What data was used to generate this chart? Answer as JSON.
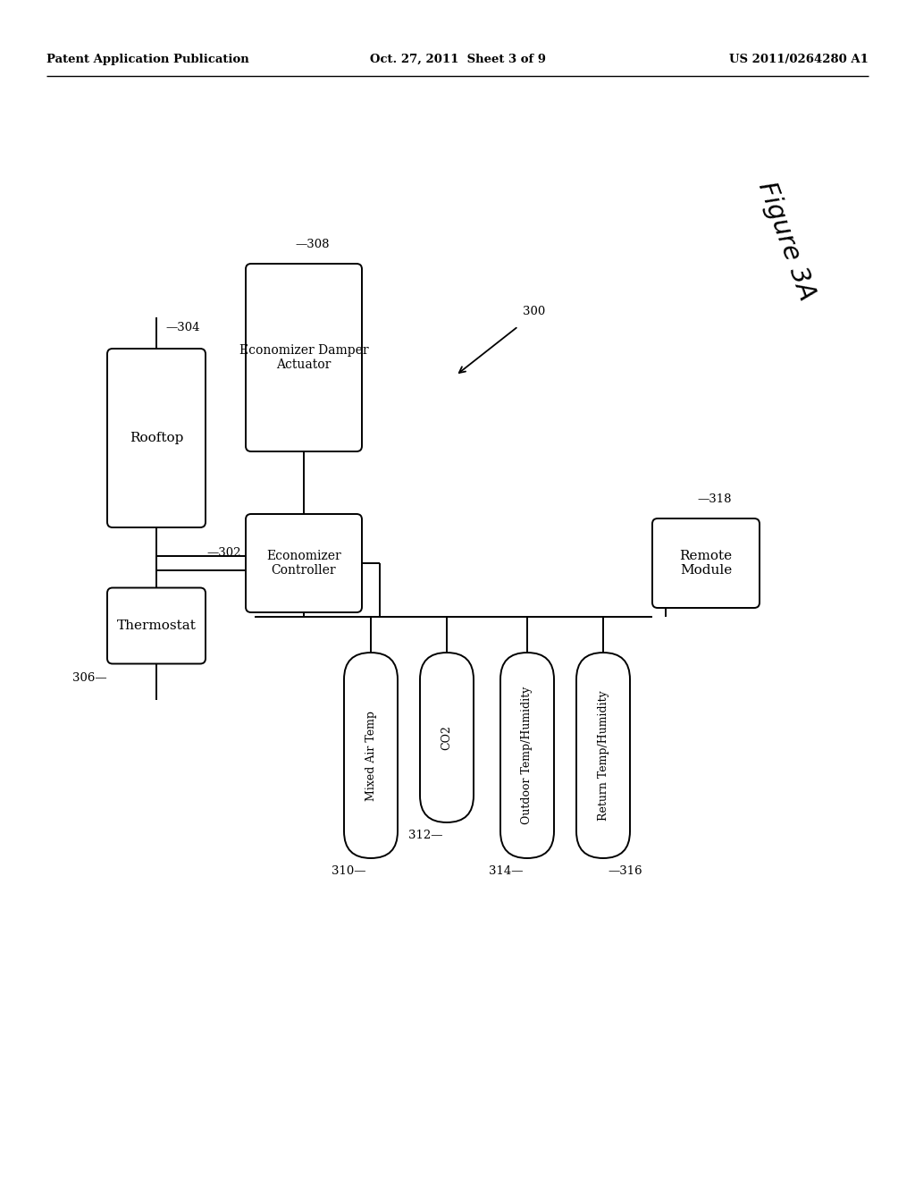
{
  "header_left": "Patent Application Publication",
  "header_center": "Oct. 27, 2011  Sheet 3 of 9",
  "header_right": "US 2011/0264280 A1",
  "figure_label": "Figure 3A",
  "ref_300": "300",
  "ref_302": "302",
  "ref_304": "304",
  "ref_306": "306",
  "ref_308": "308",
  "ref_310": "310",
  "ref_312": "312",
  "ref_314": "314",
  "ref_316": "316",
  "ref_318": "318",
  "box_rooftop": "Rooftop",
  "box_economizer_damper": "Economizer Damper\nActuator",
  "box_economizer_controller": "Economizer\nController",
  "box_thermostat": "Thermostat",
  "box_mixed_air": "Mixed Air Temp",
  "box_co2": "CO2",
  "box_outdoor": "Outdoor Temp/Humidity",
  "box_return": "Return Temp/Humidity",
  "box_remote": "Remote\nModule",
  "bg_color": "#ffffff",
  "line_color": "#000000",
  "text_color": "#000000"
}
